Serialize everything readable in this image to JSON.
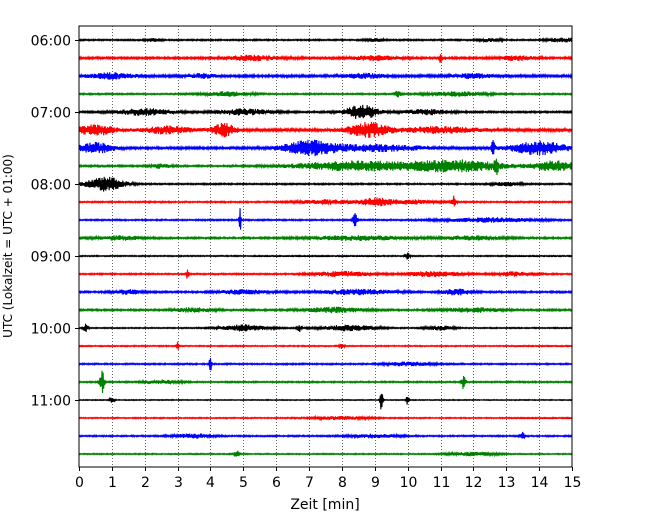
{
  "chart_data": {
    "type": "line",
    "title": "",
    "xlabel": "Zeit  [min]",
    "ylabel": "UTC (Lokalzeit = UTC + 01:00)",
    "xlim": [
      0,
      15
    ],
    "x_ticks": [
      0,
      1,
      2,
      3,
      4,
      5,
      6,
      7,
      8,
      9,
      10,
      11,
      12,
      13,
      14,
      15
    ],
    "y_tick_labels": [
      "06:00",
      "07:00",
      "08:00",
      "09:00",
      "10:00",
      "11:00"
    ],
    "grid": "vertical dotted lines at each minute",
    "trace_interval_min": 15,
    "trace_color_cycle": [
      "#000000",
      "#ff0000",
      "#0000ff",
      "#008000"
    ],
    "traces": [
      {
        "start": "06:00",
        "color": "#000000",
        "noise": 0.1,
        "bursts": [
          [
            2.3,
            0.15,
            0.25
          ],
          [
            9.0,
            0.2,
            0.2
          ],
          [
            12.5,
            0.25,
            0.22
          ],
          [
            14.7,
            0.3,
            0.3
          ]
        ]
      },
      {
        "start": "06:15",
        "color": "#ff0000",
        "noise": 0.14,
        "bursts": [
          [
            5.3,
            0.6,
            0.35
          ],
          [
            9.0,
            0.5,
            0.3
          ],
          [
            11.0,
            0.03,
            0.9
          ],
          [
            13.3,
            0.4,
            0.28
          ]
        ]
      },
      {
        "start": "06:30",
        "color": "#0000ff",
        "noise": 0.16,
        "bursts": [
          [
            1.0,
            0.5,
            0.4
          ],
          [
            3.7,
            0.3,
            0.3
          ],
          [
            8.7,
            0.4,
            0.3
          ],
          [
            12.0,
            0.4,
            0.3
          ]
        ]
      },
      {
        "start": "06:45",
        "color": "#008000",
        "noise": 0.1,
        "bursts": [
          [
            4.5,
            0.5,
            0.3
          ],
          [
            9.7,
            0.05,
            0.7
          ],
          [
            11.5,
            0.6,
            0.3
          ]
        ]
      },
      {
        "start": "07:00",
        "color": "#000000",
        "noise": 0.12,
        "bursts": [
          [
            2.0,
            0.6,
            0.45
          ],
          [
            5.0,
            0.6,
            0.4
          ],
          [
            8.6,
            0.35,
            1.0
          ],
          [
            10.6,
            0.5,
            0.35
          ]
        ]
      },
      {
        "start": "07:15",
        "color": "#ff0000",
        "noise": 0.18,
        "bursts": [
          [
            0.5,
            0.4,
            0.7
          ],
          [
            2.7,
            0.5,
            0.5
          ],
          [
            4.4,
            0.25,
            0.9
          ],
          [
            8.8,
            0.45,
            1.0
          ],
          [
            11.0,
            0.8,
            0.4
          ]
        ]
      },
      {
        "start": "07:30",
        "color": "#0000ff",
        "noise": 0.16,
        "bursts": [
          [
            0.5,
            0.4,
            0.7
          ],
          [
            7.0,
            0.55,
            1.0
          ],
          [
            9.0,
            1.0,
            0.45
          ],
          [
            12.6,
            0.04,
            1.0
          ],
          [
            14.0,
            0.6,
            0.9
          ]
        ]
      },
      {
        "start": "07:45",
        "color": "#008000",
        "noise": 0.12,
        "bursts": [
          [
            2.5,
            0.2,
            0.3
          ],
          [
            8.5,
            1.3,
            0.7
          ],
          [
            11.5,
            1.0,
            0.8
          ],
          [
            12.7,
            0.04,
            1.0
          ],
          [
            14.5,
            0.5,
            0.7
          ]
        ]
      },
      {
        "start": "08:00",
        "color": "#000000",
        "noise": 0.1,
        "bursts": [
          [
            0.8,
            0.4,
            1.0
          ],
          [
            13.0,
            0.3,
            0.25
          ]
        ]
      },
      {
        "start": "08:15",
        "color": "#ff0000",
        "noise": 0.1,
        "bursts": [
          [
            7.5,
            0.6,
            0.3
          ],
          [
            9.0,
            0.3,
            0.5
          ],
          [
            11.4,
            0.05,
            0.8
          ],
          [
            10.0,
            0.6,
            0.3
          ]
        ]
      },
      {
        "start": "08:30",
        "color": "#0000ff",
        "noise": 0.1,
        "bursts": [
          [
            4.9,
            0.02,
            2.2
          ],
          [
            8.4,
            0.05,
            0.9
          ],
          [
            12.5,
            1.0,
            0.3
          ]
        ]
      },
      {
        "start": "08:45",
        "color": "#008000",
        "noise": 0.12,
        "bursts": [
          [
            1.3,
            0.5,
            0.3
          ],
          [
            8.5,
            1.0,
            0.3
          ],
          [
            12.0,
            0.6,
            0.3
          ]
        ]
      },
      {
        "start": "09:00",
        "color": "#000000",
        "noise": 0.08,
        "bursts": [
          [
            10.0,
            0.05,
            0.5
          ]
        ]
      },
      {
        "start": "09:15",
        "color": "#ff0000",
        "noise": 0.1,
        "bursts": [
          [
            3.3,
            0.02,
            1.3
          ],
          [
            8.0,
            0.6,
            0.35
          ],
          [
            10.8,
            0.6,
            0.35
          ],
          [
            13.2,
            0.4,
            0.28
          ]
        ]
      },
      {
        "start": "09:30",
        "color": "#0000ff",
        "noise": 0.12,
        "bursts": [
          [
            1.5,
            0.3,
            0.3
          ],
          [
            5.0,
            0.5,
            0.3
          ],
          [
            8.5,
            0.8,
            0.35
          ],
          [
            11.5,
            0.3,
            0.4
          ]
        ]
      },
      {
        "start": "09:45",
        "color": "#008000",
        "noise": 0.12,
        "bursts": [
          [
            3.5,
            0.4,
            0.3
          ],
          [
            7.8,
            0.6,
            0.35
          ],
          [
            12.0,
            0.6,
            0.3
          ]
        ]
      },
      {
        "start": "10:00",
        "color": "#000000",
        "noise": 0.08,
        "bursts": [
          [
            0.2,
            0.05,
            0.6
          ],
          [
            5.0,
            0.5,
            0.45
          ],
          [
            6.7,
            0.05,
            0.5
          ],
          [
            8.2,
            0.6,
            0.4
          ],
          [
            11.0,
            0.3,
            0.3
          ]
        ]
      },
      {
        "start": "10:15",
        "color": "#ff0000",
        "noise": 0.08,
        "bursts": [
          [
            3.0,
            0.02,
            0.9
          ],
          [
            8.0,
            0.05,
            0.4
          ]
        ]
      },
      {
        "start": "10:30",
        "color": "#0000ff",
        "noise": 0.1,
        "bursts": [
          [
            4.0,
            0.02,
            2.2
          ],
          [
            10.0,
            0.5,
            0.25
          ]
        ]
      },
      {
        "start": "10:45",
        "color": "#008000",
        "noise": 0.1,
        "bursts": [
          [
            0.7,
            0.05,
            1.6
          ],
          [
            11.7,
            0.04,
            1.0
          ],
          [
            2.5,
            0.4,
            0.25
          ]
        ]
      },
      {
        "start": "11:00",
        "color": "#000000",
        "noise": 0.06,
        "bursts": [
          [
            1.0,
            0.05,
            0.4
          ],
          [
            9.2,
            0.03,
            1.5
          ],
          [
            10.0,
            0.03,
            0.8
          ]
        ]
      },
      {
        "start": "11:15",
        "color": "#ff0000",
        "noise": 0.08,
        "bursts": [
          [
            8.0,
            0.6,
            0.22
          ]
        ]
      },
      {
        "start": "11:30",
        "color": "#0000ff",
        "noise": 0.1,
        "bursts": [
          [
            3.5,
            0.4,
            0.3
          ],
          [
            13.5,
            0.05,
            0.5
          ],
          [
            9.0,
            0.5,
            0.25
          ]
        ]
      },
      {
        "start": "11:45",
        "color": "#008000",
        "noise": 0.08,
        "bursts": [
          [
            4.8,
            0.05,
            0.5
          ],
          [
            12.0,
            0.5,
            0.25
          ]
        ]
      }
    ]
  }
}
